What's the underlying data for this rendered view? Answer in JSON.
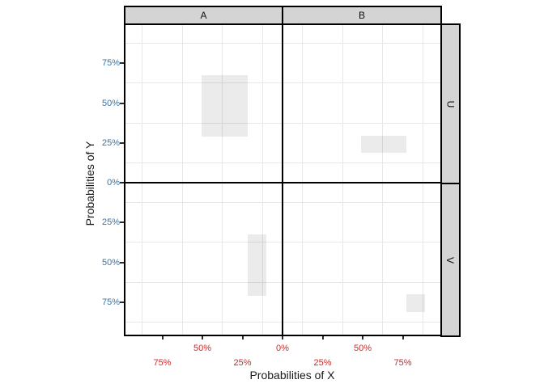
{
  "chart_data": {
    "type": "bar",
    "subtype": "faceted-diverging-rect-plot",
    "title": "",
    "xlabel": "Probabilities of X",
    "ylabel": "Probabilities of Y",
    "facets": {
      "columns": [
        "A",
        "B"
      ],
      "rows": [
        "U",
        "V"
      ]
    },
    "x_axis": {
      "label_color": "#cc2a2a",
      "range_pct_each_side": [
        0,
        98
      ],
      "ticks": [
        {
          "value": -75,
          "label": "75%",
          "row": 2
        },
        {
          "value": -50,
          "label": "50%",
          "row": 1
        },
        {
          "value": -25,
          "label": "25%",
          "row": 2
        },
        {
          "value": 0,
          "label": "0%",
          "row": 1
        },
        {
          "value": 25,
          "label": "25%",
          "row": 2
        },
        {
          "value": 50,
          "label": "50%",
          "row": 1
        },
        {
          "value": 75,
          "label": "75%",
          "row": 2
        }
      ]
    },
    "y_axis": {
      "label_color": "#3674a8",
      "range_pct_each_side": [
        0,
        98
      ],
      "ticks": [
        {
          "value": 75,
          "label": "75%"
        },
        {
          "value": 50,
          "label": "50%"
        },
        {
          "value": 25,
          "label": "25%"
        },
        {
          "value": 0,
          "label": "0%"
        },
        {
          "value": -25,
          "label": "25%"
        },
        {
          "value": -50,
          "label": "50%"
        },
        {
          "value": -75,
          "label": "75%"
        }
      ]
    },
    "minor_gridlines_pct": [
      12.5,
      37.5,
      62.5,
      87.5
    ],
    "grid": "minor-only",
    "rects": [
      {
        "facet_col": "A",
        "facet_row": "U",
        "x_min": 21.5,
        "x_max": 50.5,
        "y_min": 29,
        "y_max": 67.5
      },
      {
        "facet_col": "B",
        "facet_row": "U",
        "x_min": 49,
        "x_max": 77.5,
        "y_min": 19,
        "y_max": 29.5
      },
      {
        "facet_col": "A",
        "facet_row": "V",
        "x_min": 10,
        "x_max": 21.5,
        "y_min": 32.5,
        "y_max": 71
      },
      {
        "facet_col": "B",
        "facet_row": "V",
        "x_min": 77.5,
        "x_max": 89,
        "y_min": 70,
        "y_max": 81
      }
    ],
    "colors": {
      "rect_fill": "rgba(0,0,0,0.08)",
      "gridline": "#e8e8e8",
      "strip_fill": "#d4d4d4",
      "panel_border": "#000000",
      "zero_line": "#000000",
      "background": "#ffffff"
    }
  }
}
